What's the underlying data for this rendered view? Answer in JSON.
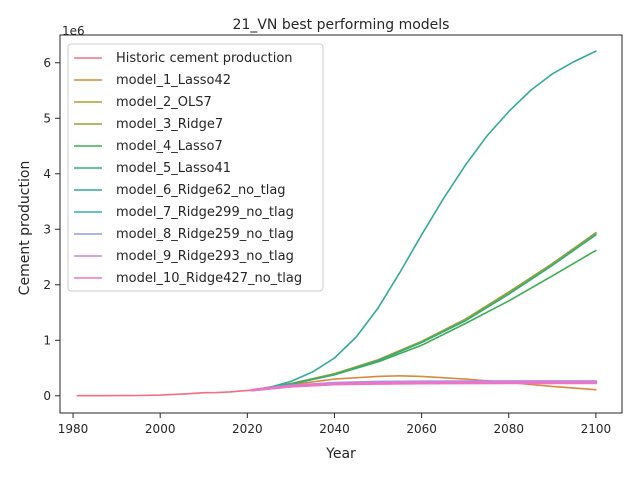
{
  "chart_data": {
    "type": "line",
    "title": "21_VN best performing models",
    "xlabel": "Year",
    "ylabel": "Cement production",
    "offset_label": "1e6",
    "xlim": [
      1977,
      2106
    ],
    "ylim": [
      -0.31,
      6.5
    ],
    "xticks": [
      1980,
      2000,
      2020,
      2040,
      2060,
      2080,
      2100
    ],
    "yticks": [
      0,
      1,
      2,
      3,
      4,
      5,
      6
    ],
    "grid": false,
    "legend": "top-left",
    "series": [
      {
        "name": "Historic cement production",
        "color": "#f0707f",
        "x": [
          1981,
          1985,
          1990,
          1995,
          2000,
          2005,
          2008,
          2010,
          2013,
          2016,
          2019,
          2021
        ],
        "y": [
          0.001,
          0.002,
          0.003,
          0.006,
          0.013,
          0.03,
          0.045,
          0.055,
          0.058,
          0.07,
          0.09,
          0.1
        ]
      },
      {
        "name": "model_1_Lasso42",
        "color": "#d98a3d",
        "x": [
          2021,
          2030,
          2040,
          2050,
          2055,
          2060,
          2070,
          2080,
          2090,
          2100
        ],
        "y": [
          0.1,
          0.2,
          0.3,
          0.35,
          0.36,
          0.35,
          0.3,
          0.24,
          0.17,
          0.11
        ]
      },
      {
        "name": "model_2_OLS7",
        "color": "#b49b2e",
        "x": [
          2021,
          2030,
          2040,
          2050,
          2060,
          2070,
          2080,
          2090,
          2100
        ],
        "y": [
          0.1,
          0.22,
          0.4,
          0.65,
          0.98,
          1.38,
          1.87,
          2.38,
          2.93
        ]
      },
      {
        "name": "model_3_Ridge7",
        "color": "#8fa33a",
        "x": [
          2021,
          2030,
          2040,
          2050,
          2060,
          2070,
          2080,
          2090,
          2100
        ],
        "y": [
          0.1,
          0.22,
          0.39,
          0.64,
          0.97,
          1.37,
          1.86,
          2.38,
          2.94
        ]
      },
      {
        "name": "model_4_Lasso7",
        "color": "#3dae52",
        "x": [
          2021,
          2030,
          2040,
          2050,
          2060,
          2070,
          2080,
          2090,
          2100
        ],
        "y": [
          0.1,
          0.21,
          0.38,
          0.61,
          0.91,
          1.3,
          1.71,
          2.16,
          2.62
        ]
      },
      {
        "name": "model_5_Lasso41",
        "color": "#33ad7c",
        "x": [
          2021,
          2030,
          2040,
          2050,
          2060,
          2070,
          2080,
          2090,
          2100
        ],
        "y": [
          0.1,
          0.21,
          0.38,
          0.63,
          0.96,
          1.35,
          1.83,
          2.35,
          2.9
        ]
      },
      {
        "name": "model_6_Ridge62_no_tlag",
        "color": "#34ab98",
        "x": [
          2021,
          2025,
          2030,
          2035,
          2040,
          2045,
          2050,
          2055,
          2060,
          2065,
          2070,
          2075,
          2080,
          2085,
          2090,
          2095,
          2100
        ],
        "y": [
          0.1,
          0.15,
          0.26,
          0.43,
          0.68,
          1.06,
          1.58,
          2.22,
          2.9,
          3.55,
          4.15,
          4.68,
          5.12,
          5.5,
          5.8,
          6.02,
          6.21
        ]
      },
      {
        "name": "model_7_Ridge299_no_tlag",
        "color": "#38a7b8",
        "x": [
          2021,
          2030,
          2040,
          2050,
          2060,
          2080,
          2100
        ],
        "y": [
          0.1,
          0.17,
          0.21,
          0.23,
          0.235,
          0.24,
          0.24
        ]
      },
      {
        "name": "model_8_Ridge259_no_tlag",
        "color": "#8c9ce6",
        "x": [
          2021,
          2030,
          2040,
          2050,
          2060,
          2080,
          2100
        ],
        "y": [
          0.1,
          0.18,
          0.23,
          0.25,
          0.255,
          0.26,
          0.26
        ]
      },
      {
        "name": "model_9_Ridge293_no_tlag",
        "color": "#d57ee0",
        "x": [
          2021,
          2030,
          2040,
          2050,
          2060,
          2080,
          2100
        ],
        "y": [
          0.1,
          0.18,
          0.22,
          0.24,
          0.245,
          0.25,
          0.25
        ]
      },
      {
        "name": "model_10_Ridge427_no_tlag",
        "color": "#ef74c4",
        "x": [
          2021,
          2030,
          2040,
          2050,
          2060,
          2080,
          2100
        ],
        "y": [
          0.1,
          0.17,
          0.21,
          0.22,
          0.225,
          0.23,
          0.23
        ]
      }
    ]
  }
}
